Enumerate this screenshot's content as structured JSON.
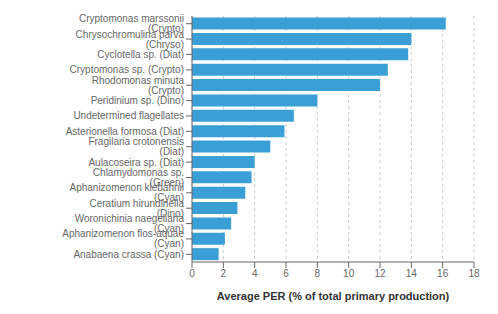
{
  "chart_data": {
    "type": "bar",
    "orientation": "horizontal",
    "categories": [
      "Anabaena crassa (Cyan)",
      "Aphanizomenon flos-aquae (Cyan)",
      "Woronichinia naegeliana (Cyan)",
      "Ceratium hirundinella (Dino)",
      "Aphanizomenon klebahnii (Cyan)",
      "Chlamydomonas sp. (Green)",
      "Aulacoseira sp. (Diat)",
      "Fragilaria crotonensis (Diat)",
      "Asterionella formosa (Diat)",
      "Undetermined flagellates",
      "Peridinium sp. (Dino)",
      "Rhodomonas minuta (Crypto)",
      "Cryptomonas sp. (Crypto)",
      "Cyclotella sp. (Diat)",
      "Chrysochromulina parva (Chryso)",
      "Cryptomonas marssonii (Crypto)"
    ],
    "values": [
      1.7,
      2.1,
      2.5,
      2.9,
      3.4,
      3.8,
      4.0,
      5.0,
      5.9,
      6.5,
      8.0,
      12.0,
      12.5,
      13.8,
      14.0,
      16.2
    ],
    "color": "#3a9fd6",
    "xlabel": "Average PER (% of total primary production)",
    "xlim": [
      0,
      18
    ],
    "xticks": [
      0,
      2,
      4,
      6,
      8,
      10,
      12,
      14,
      16,
      18
    ],
    "grid": true
  }
}
